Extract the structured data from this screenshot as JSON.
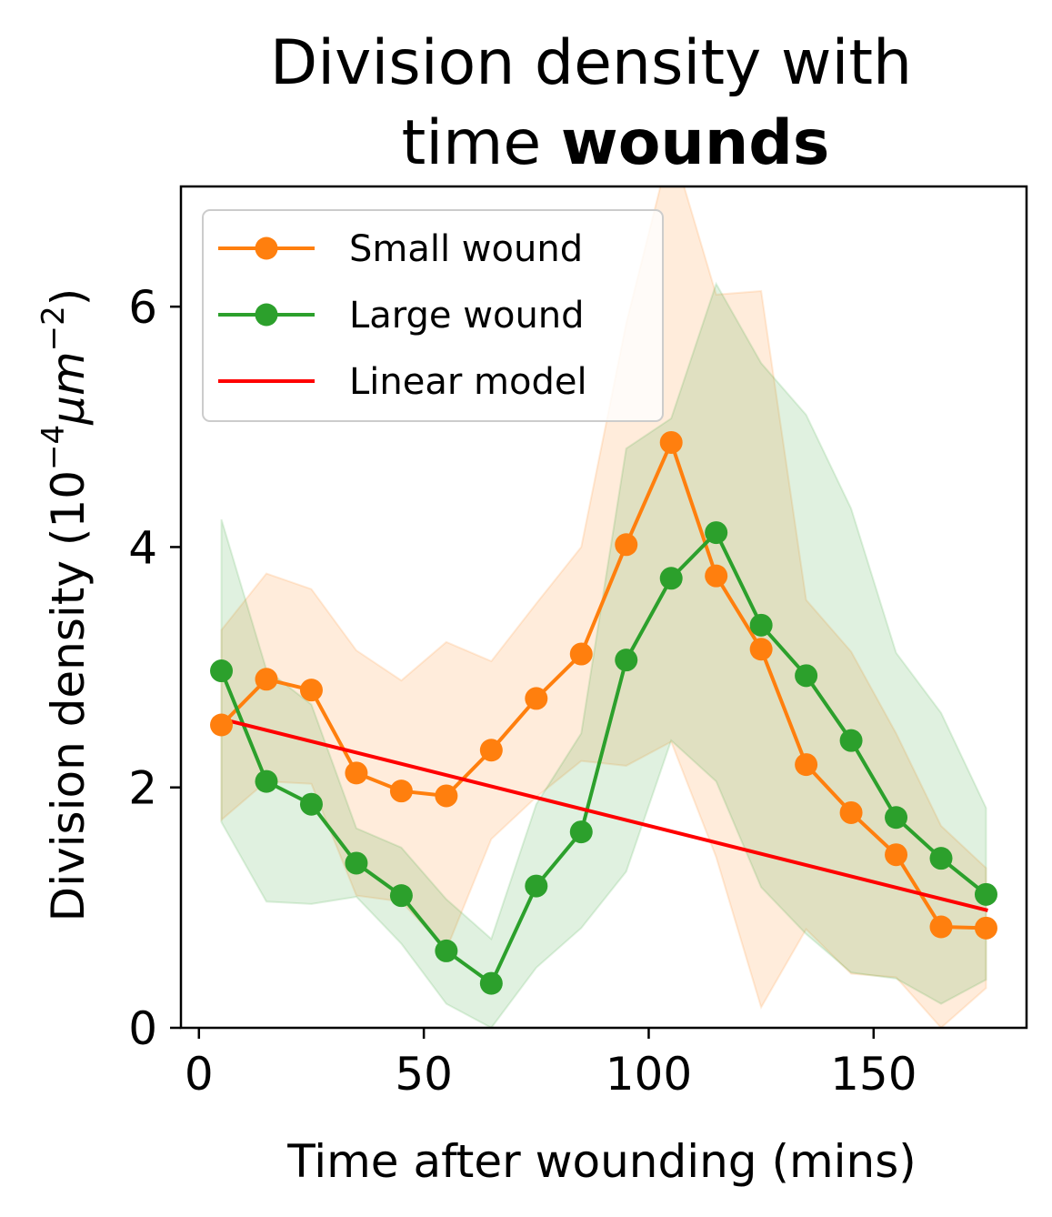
{
  "chart_data": {
    "type": "line",
    "title_line1": "Division density with",
    "title_line2_plain": "time",
    "title_line2_bold": "wounds",
    "xlabel": "Time after wounding (mins)",
    "ylabel_prefix": "Division density (10",
    "ylabel_exp1": "−4",
    "ylabel_mu": "μm",
    "ylabel_exp2": "−2",
    "ylabel_suffix": ")",
    "xlim": [
      -4,
      184
    ],
    "ylim": [
      0,
      7
    ],
    "xticks": [
      0,
      50,
      100,
      150
    ],
    "yticks": [
      0,
      2,
      4,
      6
    ],
    "grid": false,
    "legend_position": "top-left",
    "x": [
      5,
      15,
      25,
      35,
      45,
      55,
      65,
      75,
      85,
      95,
      105,
      115,
      125,
      135,
      145,
      155,
      165,
      175
    ],
    "series": [
      {
        "name": "Small wound",
        "color": "#ff7f0e",
        "marker": "circle",
        "values": [
          2.52,
          2.9,
          2.81,
          2.12,
          1.97,
          1.93,
          2.31,
          2.74,
          3.11,
          4.02,
          4.87,
          3.76,
          3.15,
          2.19,
          1.79,
          1.44,
          0.84,
          0.83
        ],
        "band_lower": [
          1.73,
          2.05,
          2.03,
          1.1,
          1.05,
          0.65,
          1.57,
          1.92,
          2.22,
          2.18,
          2.38,
          1.42,
          0.17,
          0.82,
          0.45,
          0.42,
          0.0,
          0.33
        ],
        "band_upper": [
          3.31,
          3.78,
          3.65,
          3.14,
          2.89,
          3.21,
          3.05,
          3.53,
          4.0,
          5.86,
          7.36,
          6.1,
          6.13,
          3.56,
          3.13,
          2.45,
          1.68,
          1.33
        ]
      },
      {
        "name": "Large wound",
        "color": "#2ca02c",
        "marker": "circle",
        "values": [
          2.97,
          2.05,
          1.86,
          1.37,
          1.1,
          0.64,
          0.37,
          1.18,
          1.63,
          3.06,
          3.74,
          4.12,
          3.35,
          2.93,
          2.39,
          1.75,
          1.41,
          1.11
        ],
        "band_lower": [
          1.71,
          1.05,
          1.03,
          1.09,
          0.7,
          0.2,
          0.0,
          0.5,
          0.83,
          1.3,
          2.39,
          2.05,
          1.17,
          0.78,
          0.46,
          0.41,
          0.2,
          0.4
        ],
        "band_upper": [
          4.23,
          2.98,
          2.69,
          1.66,
          1.5,
          1.07,
          0.74,
          1.86,
          2.45,
          4.82,
          5.07,
          6.19,
          5.53,
          5.1,
          4.32,
          3.12,
          2.62,
          1.83
        ]
      },
      {
        "name": "Linear model",
        "color": "#ff0000",
        "marker": "none",
        "x": [
          5,
          175
        ],
        "values": [
          2.57,
          0.98
        ]
      }
    ]
  }
}
